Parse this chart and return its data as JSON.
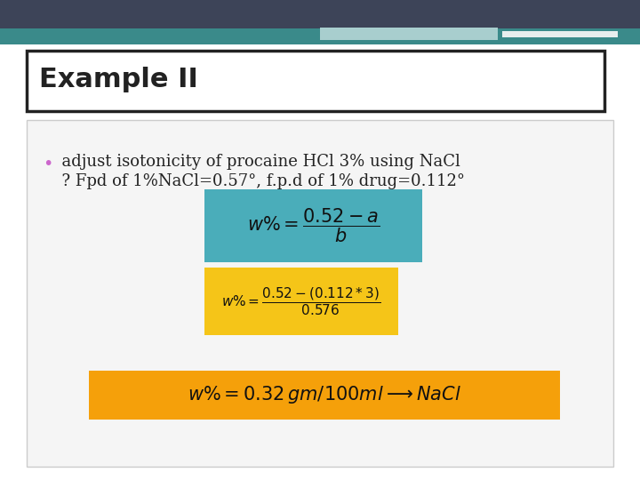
{
  "title_text": "Example II",
  "title_fontsize": 22,
  "bullet_text_line1": "  adjust isotonicity of procaine HCl 3% using NaCl",
  "bullet_text_line2": "  ? Fpd of 1%NaCl=0.57°, f.p.d of 1% drug=0.112°",
  "slide_top_color": "#3d4458",
  "slide_teal_color": "#3a8a8a",
  "slide_teal_light": "#a8cece",
  "slide_white_accent": "#e8eeee",
  "main_bg_color": "#ffffff",
  "content_bg_color": "#f5f5f5",
  "content_border_color": "#cccccc",
  "title_box_bg": "#ffffff",
  "title_box_border": "#222222",
  "formula_teal_bg": "#4aadba",
  "formula_yellow_bg": "#f5c518",
  "result_orange_bg": "#f5a00a",
  "bullet_color": "#cc66cc",
  "text_color": "#222222",
  "formula_text_color": "#111111"
}
